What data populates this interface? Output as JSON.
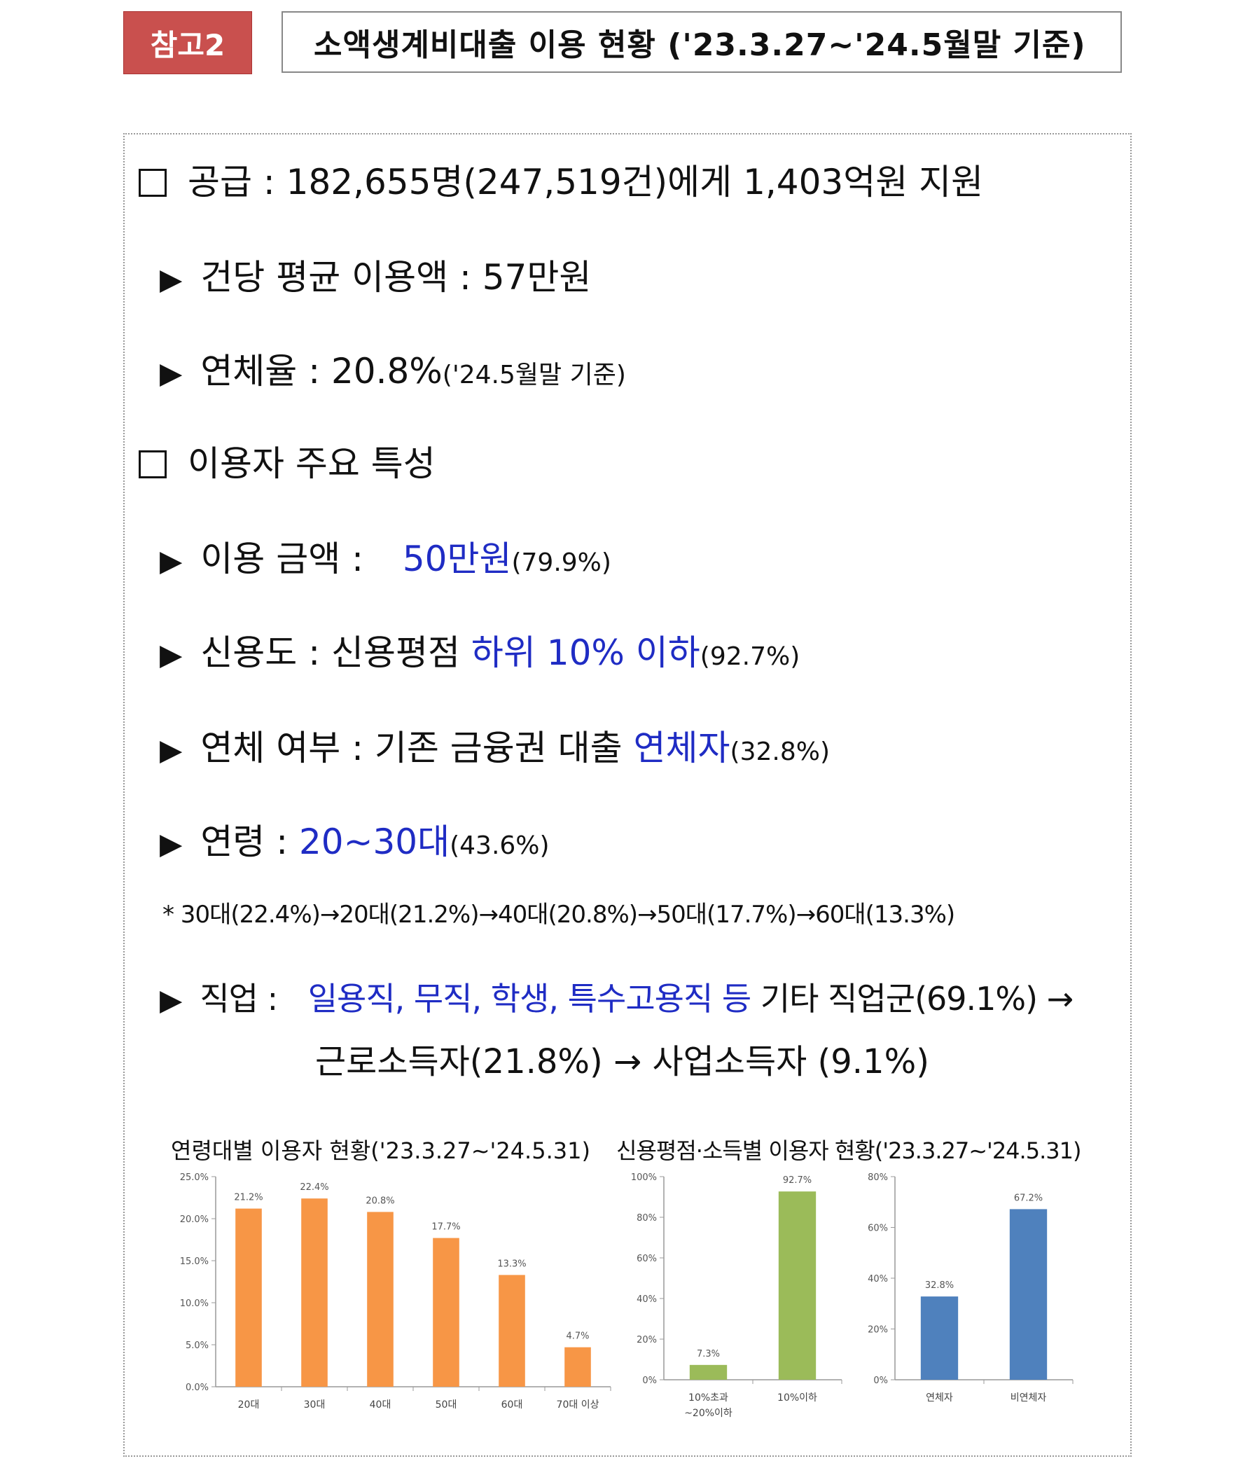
{
  "header": {
    "tag": "참고2",
    "title": "소액생계비대출 이용 현황 ('23.3.27~'24.5월말 기준)"
  },
  "supply": {
    "heading": "공급 : 182,655명(247,519건)에게 1,403억원 지원",
    "avg_label": "건당 평균 이용액 : 57만원",
    "overdue_label": "연체율 : 20.8%",
    "overdue_note": "('24.5월말 기준)"
  },
  "features": {
    "heading": "이용자 주요 특성",
    "amount_prefix": "이용 금액 :",
    "amount_value": "50만원",
    "amount_pct": "(79.9%)",
    "credit_prefix": "신용도 : 신용평점",
    "credit_value": "하위 10% 이하",
    "credit_pct": "(92.7%)",
    "delinq_prefix": "연체 여부 : 기존 금융권 대출",
    "delinq_value": "연체자",
    "delinq_pct": "(32.8%)",
    "age_prefix": "연령 :",
    "age_value": "20~30대",
    "age_pct": "(43.6%)",
    "age_note": "* 30대(22.4%)→20대(21.2%)→40대(20.8%)→50대(17.7%)→60대(13.3%)",
    "job_prefix": "직업 :",
    "job_value": "일용직, 무직, 학생, 특수고용직 등",
    "job_rest": "기타 직업군(69.1%) →",
    "job_line2": "근로소득자(21.8%) → 사업소득자 (9.1%)"
  },
  "captions": {
    "left": "연령대별 이용자 현황('23.3.27~'24.5.31)",
    "right": "신용평점·소득별 이용자 현황('23.3.27~'24.5.31)"
  },
  "chart_data": [
    {
      "type": "bar",
      "title": "연령대별 이용자 현황('23.3.27~'24.5.31)",
      "categories": [
        "20대",
        "30대",
        "40대",
        "50대",
        "60대",
        "70대 이상"
      ],
      "values": [
        21.2,
        22.4,
        20.8,
        17.7,
        13.3,
        4.7
      ],
      "labels": [
        "21.2%",
        "22.4%",
        "20.8%",
        "17.7%",
        "13.3%",
        "4.7%"
      ],
      "yticks": [
        "0.0%",
        "5.0%",
        "10.0%",
        "15.0%",
        "20.0%",
        "25.0%"
      ],
      "ylim": [
        0,
        25
      ],
      "color": "#f79646"
    },
    {
      "type": "bar",
      "title": "",
      "categories": [
        "10%초과 ~20%이하",
        "10%이하"
      ],
      "values": [
        7.3,
        92.7
      ],
      "labels": [
        "7.3%",
        "92.7%"
      ],
      "yticks": [
        "0%",
        "20%",
        "40%",
        "60%",
        "80%",
        "100%"
      ],
      "ylim": [
        0,
        100
      ],
      "color": "#9bbb59"
    },
    {
      "type": "bar",
      "title": "",
      "categories": [
        "연체자",
        "비연체자"
      ],
      "values": [
        32.8,
        67.2
      ],
      "labels": [
        "32.8%",
        "67.2%"
      ],
      "yticks": [
        "0%",
        "20%",
        "40%",
        "60%",
        "80%"
      ],
      "ylim": [
        0,
        80
      ],
      "color": "#4f81bd"
    }
  ]
}
